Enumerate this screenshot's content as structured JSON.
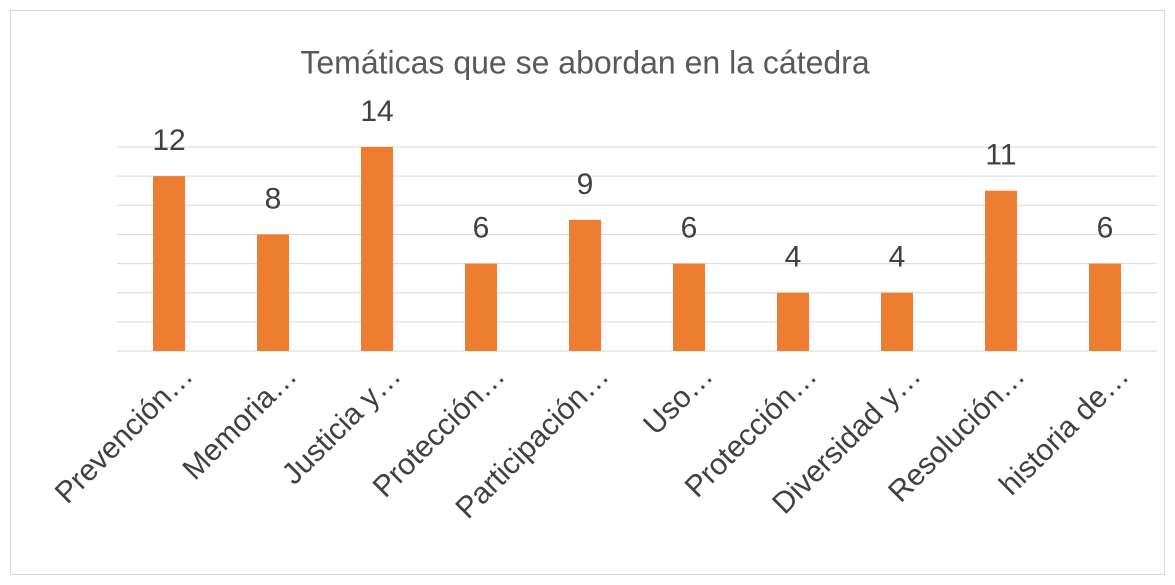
{
  "chart_data": {
    "type": "bar",
    "title": "Temáticas que se abordan en la cátedra",
    "categories": [
      "Prevención…",
      "Memoria…",
      "Justicia y…",
      "Protección…",
      "Participación…",
      "Uso…",
      "Protección…",
      "Diversidad y…",
      "Resolución…",
      "historia de…"
    ],
    "values": [
      12,
      8,
      14,
      6,
      9,
      6,
      4,
      4,
      11,
      6
    ],
    "color": "#ed7d31",
    "ylim": [
      0,
      14
    ],
    "yticks": [
      0,
      2,
      4,
      6,
      8,
      10,
      12,
      14
    ],
    "grid": true
  }
}
